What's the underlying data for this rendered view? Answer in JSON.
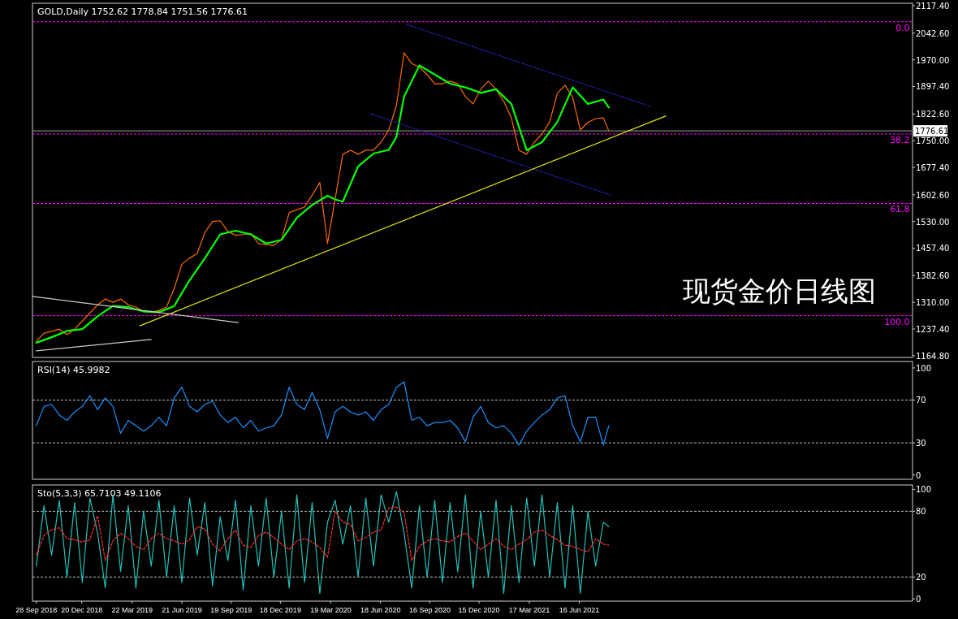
{
  "chart_data": [
    {
      "type": "line",
      "title": "GOLD,Daily 1752.62 1778.84 1751.56 1776.61",
      "annotations": [
        "现货金价日线图",
        {
          "text": "0.0",
          "x": "2023-02-10",
          "y": 2073.6
        },
        {
          "text": "38.2",
          "x": "2023-02-10",
          "y": 1768
        },
        {
          "text": "61.8",
          "x": "2023-02-10",
          "y": 1579
        },
        {
          "text": "100.0",
          "x": "2023-02-10",
          "y": 1273.6
        }
      ],
      "x": [
        "2018-09-28",
        "2018-10-12",
        "2018-10-26",
        "2018-11-09",
        "2018-11-23",
        "2018-12-07",
        "2018-12-21",
        "2019-01-04",
        "2019-01-18",
        "2019-02-01",
        "2019-02-15",
        "2019-03-01",
        "2019-03-15",
        "2019-03-29",
        "2019-04-12",
        "2019-04-26",
        "2019-05-10",
        "2019-05-24",
        "2019-06-07",
        "2019-06-21",
        "2019-07-05",
        "2019-07-19",
        "2019-08-02",
        "2019-08-16",
        "2019-08-30",
        "2019-09-13",
        "2019-09-27",
        "2019-10-11",
        "2019-10-25",
        "2019-11-08",
        "2019-11-22",
        "2019-12-06",
        "2019-12-20",
        "2020-01-03",
        "2020-01-17",
        "2020-01-31",
        "2020-02-14",
        "2020-02-28",
        "2020-03-13",
        "2020-03-27",
        "2020-04-10",
        "2020-04-24",
        "2020-05-08",
        "2020-05-22",
        "2020-06-05",
        "2020-06-19",
        "2020-07-03",
        "2020-07-17",
        "2020-07-31",
        "2020-08-14",
        "2020-08-28",
        "2020-09-11",
        "2020-09-25",
        "2020-10-09",
        "2020-10-23",
        "2020-11-06",
        "2020-11-20",
        "2020-12-04",
        "2020-12-18",
        "2021-01-01",
        "2021-01-15",
        "2021-01-29",
        "2021-02-12",
        "2021-02-26",
        "2021-03-12",
        "2021-03-26",
        "2021-04-09",
        "2021-04-23",
        "2021-05-07",
        "2021-05-21",
        "2021-06-04",
        "2021-06-18",
        "2021-07-02",
        "2021-07-16",
        "2021-07-30",
        "2021-08-09"
      ],
      "series": [
        {
          "color": "#ff6a00",
          "values": [
            1204,
            1226,
            1231,
            1237,
            1222,
            1237,
            1259,
            1281,
            1303,
            1319,
            1310,
            1319,
            1303,
            1297,
            1285,
            1283,
            1288,
            1297,
            1348,
            1414,
            1430,
            1443,
            1500,
            1530,
            1532,
            1503,
            1492,
            1495,
            1497,
            1470,
            1467,
            1465,
            1481,
            1554,
            1562,
            1569,
            1602,
            1636,
            1470,
            1591,
            1713,
            1724,
            1713,
            1724,
            1724,
            1746,
            1779,
            1846,
            1989,
            1960,
            1950,
            1930,
            1905,
            1905,
            1912,
            1905,
            1870,
            1850,
            1890,
            1912,
            1890,
            1857,
            1812,
            1724,
            1713,
            1746,
            1768,
            1801,
            1879,
            1901,
            1868,
            1779,
            1800,
            1810,
            1812,
            1776.61
          ]
        },
        {
          "color": "#00ff00",
          "x": [
            "2018-09-28",
            "2018-10-26",
            "2018-11-23",
            "2018-12-21",
            "2019-01-18",
            "2019-02-15",
            "2019-03-15",
            "2019-04-12",
            "2019-05-10",
            "2019-06-07",
            "2019-07-05",
            "2019-08-02",
            "2019-08-30",
            "2019-09-27",
            "2019-10-25",
            "2019-11-22",
            "2019-12-20",
            "2020-01-17",
            "2020-02-14",
            "2020-03-13",
            "2020-03-27",
            "2020-04-10",
            "2020-05-08",
            "2020-06-05",
            "2020-07-03",
            "2020-07-17",
            "2020-07-31",
            "2020-08-28",
            "2020-09-25",
            "2020-10-23",
            "2020-11-20",
            "2020-12-18",
            "2021-01-15",
            "2021-02-12",
            "2021-03-12",
            "2021-04-09",
            "2021-05-07",
            "2021-06-04",
            "2021-07-02",
            "2021-07-30",
            "2021-08-09"
          ],
          "values": [
            1200,
            1215,
            1232,
            1237,
            1272,
            1300,
            1297,
            1285,
            1283,
            1300,
            1370,
            1430,
            1495,
            1505,
            1495,
            1470,
            1480,
            1540,
            1575,
            1600,
            1590,
            1584,
            1680,
            1715,
            1725,
            1760,
            1870,
            1955,
            1930,
            1905,
            1895,
            1880,
            1890,
            1850,
            1724,
            1746,
            1801,
            1895,
            1850,
            1862,
            1840
          ]
        },
        {
          "color": "#2020b0",
          "line_style": "dashed",
          "x": [
            "2020-08-04",
            "2021-10-24"
          ],
          "values": [
            2067,
            1843
          ]
        },
        {
          "color": "#2020b0",
          "line_style": "dashed",
          "x": [
            "2020-05-31",
            "2021-08-12"
          ],
          "values": [
            1823,
            1602
          ]
        },
        {
          "color": "#e6e600",
          "x": [
            "2019-04-05",
            "2021-11-21"
          ],
          "values": [
            1246,
            1817
          ]
        },
        {
          "color": "#c8c8c8",
          "x": [
            "2018-09-21",
            "2019-10-02"
          ],
          "values": [
            1326,
            1255
          ]
        },
        {
          "color": "#c8c8c8",
          "x": [
            "2018-09-28",
            "2019-04-26"
          ],
          "values": [
            1178,
            1209
          ]
        }
      ],
      "xlim": [
        "2018-09-21",
        "2023-02-15"
      ],
      "ylim": [
        1160,
        2124
      ],
      "tick_labels": "y",
      "yticks": [
        {
          "value": 1164.8,
          "label": "1164.80"
        },
        {
          "value": 1237.4,
          "label": "1237.40"
        },
        {
          "value": 1310,
          "label": "1310.00"
        },
        {
          "value": 1382.6,
          "label": "1382.60"
        },
        {
          "value": 1457.4,
          "label": "1457.40"
        },
        {
          "value": 1530,
          "label": "1530.00"
        },
        {
          "value": 1602.6,
          "label": "1602.60"
        },
        {
          "value": 1677.4,
          "label": "1677.40"
        },
        {
          "value": 1750,
          "label": "1750.00"
        },
        {
          "value": 1822.6,
          "label": "1822.60"
        },
        {
          "value": 1897.4,
          "label": "1897.40"
        },
        {
          "value": 1970,
          "label": "1970.00"
        },
        {
          "value": 2042.6,
          "label": "2042.60"
        },
        {
          "value": 2117.4,
          "label": "2117.40"
        }
      ],
      "ref_lines": [
        {
          "axis": "y",
          "value": 2073.6,
          "color": "#ff00ff",
          "line_style": "dashed"
        },
        {
          "axis": "y",
          "value": 1768,
          "color": "#ff00ff",
          "line_style": "dashed"
        },
        {
          "axis": "y",
          "value": 1579,
          "color": "#ff00ff",
          "line_style": "dashed"
        },
        {
          "axis": "y",
          "value": 1273.6,
          "color": "#ff00ff",
          "line_style": "dashed"
        },
        {
          "axis": "y",
          "value": 1776.61,
          "label": "1776.61",
          "color": "#a0a0a0",
          "line_style": "solid"
        }
      ]
    },
    {
      "type": "line",
      "title": "RSI(14) 45.9982",
      "xlim": [
        "2018-09-21",
        "2023-02-15"
      ],
      "ylim": [
        -4,
        106
      ],
      "yticks": [
        0,
        30,
        70,
        100
      ],
      "tick_labels": "y",
      "x": [
        "2018-09-28",
        "2018-10-12",
        "2018-10-26",
        "2018-11-09",
        "2018-11-23",
        "2018-12-07",
        "2018-12-21",
        "2019-01-04",
        "2019-01-18",
        "2019-02-01",
        "2019-02-15",
        "2019-03-01",
        "2019-03-15",
        "2019-03-29",
        "2019-04-12",
        "2019-04-26",
        "2019-05-10",
        "2019-05-24",
        "2019-06-07",
        "2019-06-21",
        "2019-07-05",
        "2019-07-19",
        "2019-08-02",
        "2019-08-16",
        "2019-08-30",
        "2019-09-13",
        "2019-09-27",
        "2019-10-11",
        "2019-10-25",
        "2019-11-08",
        "2019-11-22",
        "2019-12-06",
        "2019-12-20",
        "2020-01-03",
        "2020-01-17",
        "2020-01-31",
        "2020-02-14",
        "2020-02-28",
        "2020-03-13",
        "2020-03-27",
        "2020-04-10",
        "2020-04-24",
        "2020-05-08",
        "2020-05-22",
        "2020-06-05",
        "2020-06-19",
        "2020-07-03",
        "2020-07-17",
        "2020-07-31",
        "2020-08-14",
        "2020-08-28",
        "2020-09-11",
        "2020-09-25",
        "2020-10-09",
        "2020-10-23",
        "2020-11-06",
        "2020-11-20",
        "2020-12-04",
        "2020-12-18",
        "2021-01-01",
        "2021-01-15",
        "2021-01-29",
        "2021-02-12",
        "2021-02-26",
        "2021-03-12",
        "2021-03-26",
        "2021-04-09",
        "2021-04-23",
        "2021-05-07",
        "2021-05-21",
        "2021-06-04",
        "2021-06-18",
        "2021-07-02",
        "2021-07-16",
        "2021-07-30",
        "2021-08-09"
      ],
      "series": [
        {
          "color": "#1e90ff",
          "values": [
            46,
            64,
            66,
            56,
            51,
            59,
            64,
            74,
            61,
            72,
            64,
            39,
            51,
            46,
            41,
            46,
            54,
            46,
            72,
            82,
            64,
            59,
            66,
            69,
            56,
            49,
            54,
            44,
            51,
            41,
            44,
            46,
            56,
            82,
            66,
            61,
            77,
            61,
            34,
            59,
            64,
            59,
            56,
            59,
            51,
            61,
            66,
            82,
            87,
            51,
            54,
            46,
            49,
            49,
            51,
            44,
            31,
            54,
            64,
            49,
            44,
            46,
            39,
            28,
            41,
            49,
            56,
            61,
            72,
            74,
            46,
            31,
            54,
            54,
            28,
            46
          ]
        }
      ],
      "ref_lines": [
        {
          "axis": "y",
          "value": 70,
          "color": "#c0c0c0",
          "line_style": "dashed"
        },
        {
          "axis": "y",
          "value": 30,
          "color": "#c0c0c0",
          "line_style": "dashed"
        }
      ]
    },
    {
      "type": "line",
      "title": "Sto(5,3,3) 65.7103 49.1106",
      "xlim": [
        "2018-09-21",
        "2023-02-15"
      ],
      "ylim": [
        -2,
        104
      ],
      "yticks": [
        0,
        20,
        80,
        100
      ],
      "xticks": [
        {
          "value": "2018-09-28",
          "label": "28 Sep 2018"
        },
        {
          "value": "2018-12-20",
          "label": "20 Dec 2018"
        },
        {
          "value": "2019-03-22",
          "label": "22 Mar 2019"
        },
        {
          "value": "2019-06-21",
          "label": "21 Jun 2019"
        },
        {
          "value": "2019-09-19",
          "label": "19 Sep 2019"
        },
        {
          "value": "2019-12-18",
          "label": "18 Dec 2019"
        },
        {
          "value": "2020-03-19",
          "label": "19 Mar 2020"
        },
        {
          "value": "2020-06-18",
          "label": "18 Jun 2020"
        },
        {
          "value": "2020-09-16",
          "label": "16 Sep 2020"
        },
        {
          "value": "2020-12-15",
          "label": "15 Dec 2020"
        },
        {
          "value": "2021-03-17",
          "label": "17 Mar 2021"
        },
        {
          "value": "2021-06-16",
          "label": "16 Jun 2021"
        }
      ],
      "x": [
        "2018-09-28",
        "2018-10-12",
        "2018-10-26",
        "2018-11-09",
        "2018-11-23",
        "2018-12-07",
        "2018-12-21",
        "2019-01-04",
        "2019-01-18",
        "2019-02-01",
        "2019-02-15",
        "2019-03-01",
        "2019-03-15",
        "2019-03-29",
        "2019-04-12",
        "2019-04-26",
        "2019-05-10",
        "2019-05-24",
        "2019-06-07",
        "2019-06-21",
        "2019-07-05",
        "2019-07-19",
        "2019-08-02",
        "2019-08-16",
        "2019-08-30",
        "2019-09-13",
        "2019-09-27",
        "2019-10-11",
        "2019-10-25",
        "2019-11-08",
        "2019-11-22",
        "2019-12-06",
        "2019-12-20",
        "2020-01-03",
        "2020-01-17",
        "2020-01-31",
        "2020-02-14",
        "2020-02-28",
        "2020-03-13",
        "2020-03-27",
        "2020-04-10",
        "2020-04-24",
        "2020-05-08",
        "2020-05-22",
        "2020-06-05",
        "2020-06-19",
        "2020-07-03",
        "2020-07-17",
        "2020-07-31",
        "2020-08-14",
        "2020-08-28",
        "2020-09-11",
        "2020-09-25",
        "2020-10-09",
        "2020-10-23",
        "2020-11-06",
        "2020-11-20",
        "2020-12-04",
        "2020-12-18",
        "2021-01-01",
        "2021-01-15",
        "2021-01-29",
        "2021-02-12",
        "2021-02-26",
        "2021-03-12",
        "2021-03-26",
        "2021-04-09",
        "2021-04-23",
        "2021-05-07",
        "2021-05-21",
        "2021-06-04",
        "2021-06-18",
        "2021-07-02",
        "2021-07-16",
        "2021-07-30",
        "2021-08-09"
      ],
      "series": [
        {
          "color": "#20c0b8",
          "values": [
            30,
            85,
            40,
            90,
            20,
            88,
            15,
            92,
            60,
            10,
            95,
            25,
            85,
            10,
            80,
            30,
            90,
            20,
            85,
            15,
            92,
            40,
            88,
            12,
            75,
            35,
            90,
            8,
            85,
            30,
            92,
            20,
            80,
            10,
            95,
            15,
            88,
            5,
            70,
            90,
            50,
            85,
            20,
            92,
            30,
            95,
            70,
            98,
            60,
            10,
            85,
            20,
            90,
            15,
            88,
            25,
            95,
            10,
            80,
            20,
            90,
            5,
            85,
            15,
            92,
            30,
            95,
            20,
            88,
            10,
            85,
            5,
            80,
            30,
            70,
            66
          ]
        },
        {
          "color": "#ff3030",
          "line_style": "dashed",
          "values": [
            40,
            58,
            63,
            65,
            55,
            54,
            52,
            54,
            76,
            35,
            53,
            60,
            55,
            48,
            45,
            55,
            60,
            55,
            53,
            50,
            54,
            66,
            64,
            50,
            44,
            55,
            63,
            49,
            47,
            58,
            61,
            56,
            50,
            45,
            53,
            55,
            52,
            47,
            38,
            80,
            70,
            68,
            53,
            56,
            61,
            63,
            83,
            84,
            79,
            35,
            48,
            53,
            55,
            53,
            52,
            57,
            60,
            53,
            45,
            50,
            55,
            48,
            45,
            50,
            54,
            61,
            63,
            58,
            54,
            49,
            48,
            45,
            43,
            55,
            50,
            49
          ]
        }
      ],
      "ref_lines": [
        {
          "axis": "y",
          "value": 80,
          "color": "#c0c0c0",
          "line_style": "dashed"
        },
        {
          "axis": "y",
          "value": 20,
          "color": "#c0c0c0",
          "line_style": "dashed"
        }
      ]
    }
  ]
}
